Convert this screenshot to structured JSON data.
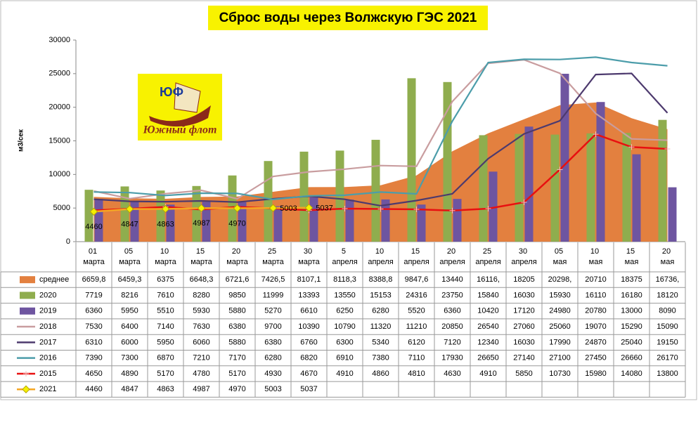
{
  "chart_data": {
    "type": "combo",
    "title": "Сброс воды через Волжскую ГЭС 2021",
    "y_label": "м3/сек",
    "ylim": [
      0,
      30000
    ],
    "yticks": [
      0,
      5000,
      10000,
      15000,
      20000,
      25000,
      30000
    ],
    "grid": false,
    "categories": [
      "01 марта",
      "05 марта",
      "10 марта",
      "15 марта",
      "20 марта",
      "25 марта",
      "30 марта",
      "5 апреля",
      "10 апреля",
      "15 апреля",
      "20 апреля",
      "25 апреля",
      "30 апреля",
      "05 мая",
      "10 мая",
      "15 мая",
      "20 мая"
    ],
    "series": [
      {
        "name": "среднее",
        "type": "area",
        "color": "#e3803f",
        "values": [
          6659.8,
          6459.3,
          6375,
          6648.3,
          6721.6,
          7426.5,
          8107.1,
          8118.3,
          8388.8,
          9847.6,
          13440,
          16116,
          18205,
          20298,
          20710,
          18375,
          16736
        ],
        "value_labels": [
          "6659,8",
          "6459,3",
          "6375",
          "6648,3",
          "6721,6",
          "7426,5",
          "8107,1",
          "8118,3",
          "8388,8",
          "9847,6",
          "13440",
          "16116,",
          "18205",
          "20298,",
          "20710",
          "18375",
          "16736,"
        ]
      },
      {
        "name": "2020",
        "type": "bar",
        "color": "#8fad4e",
        "values": [
          7719,
          8216,
          7610,
          8280,
          9850,
          11999,
          13393,
          13550,
          15153,
          24316,
          23750,
          15840,
          16030,
          15930,
          16110,
          16180,
          18120
        ]
      },
      {
        "name": "2019",
        "type": "bar",
        "color": "#6e55a0",
        "values": [
          6360,
          5950,
          5510,
          5930,
          5880,
          5270,
          6610,
          6250,
          6280,
          5520,
          6360,
          10420,
          17120,
          24980,
          20780,
          13000,
          8090
        ]
      },
      {
        "name": "2018",
        "type": "line",
        "color": "#c99d9f",
        "values": [
          7530,
          6400,
          7140,
          7630,
          6380,
          9700,
          10390,
          10790,
          11320,
          11210,
          20850,
          26540,
          27060,
          25060,
          19070,
          15290,
          15090
        ]
      },
      {
        "name": "2017",
        "type": "line",
        "color": "#4d3a6e",
        "values": [
          6310,
          6000,
          5950,
          6060,
          5880,
          6380,
          6760,
          6300,
          5340,
          6120,
          7120,
          12340,
          16030,
          17990,
          24870,
          25040,
          19150
        ]
      },
      {
        "name": "2016",
        "type": "line",
        "color": "#4c9daa",
        "values": [
          7390,
          7300,
          6870,
          7210,
          7170,
          6280,
          6820,
          6910,
          7380,
          7110,
          17930,
          26650,
          27140,
          27100,
          27450,
          26660,
          26170
        ]
      },
      {
        "name": "2015",
        "type": "line",
        "color": "#e81010",
        "marker": "plus",
        "values": [
          4650,
          4890,
          5170,
          4780,
          5170,
          4930,
          4670,
          4910,
          4860,
          4810,
          4630,
          4910,
          5850,
          10730,
          15980,
          14080,
          13800
        ]
      },
      {
        "name": "2021",
        "type": "line",
        "color": "#f5a623",
        "marker": "diamond",
        "marker_color": "#f4f000",
        "data_labels": true,
        "values": [
          4460,
          4847,
          4863,
          4987,
          4970,
          5003,
          5037,
          null,
          null,
          null,
          null,
          null,
          null,
          null,
          null,
          null,
          null
        ]
      }
    ]
  },
  "logo": {
    "badge": "ЮФ",
    "text": "Южный флот"
  }
}
